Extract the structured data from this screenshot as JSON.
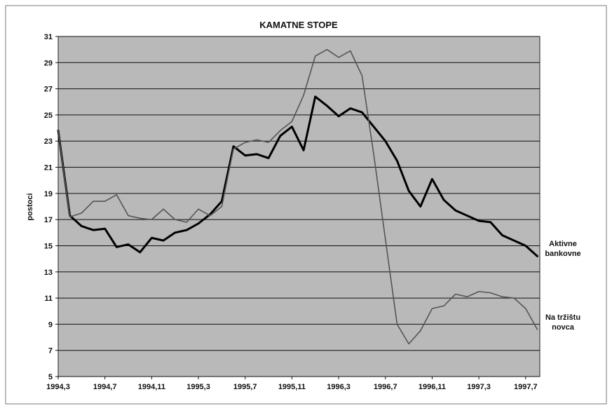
{
  "chart_data": {
    "type": "line",
    "title": "KAMATNE STOPE",
    "y_label": "postoci",
    "categories": [
      "1994,3",
      null,
      null,
      null,
      "1994,7",
      null,
      null,
      null,
      "1994,11",
      null,
      null,
      null,
      "1995,3",
      null,
      null,
      null,
      "1995,7",
      null,
      null,
      null,
      "1995,11",
      null,
      null,
      null,
      "1996,3",
      null,
      null,
      null,
      "1996,7",
      null,
      null,
      null,
      "1996,11",
      null,
      null,
      null,
      "1997,3",
      null,
      null,
      null,
      "1997,7",
      null
    ],
    "series": [
      {
        "name": "Aktivne bankovne",
        "color": "#000000",
        "width": 3,
        "values": [
          23.8,
          17.3,
          16.5,
          16.2,
          16.3,
          14.9,
          15.1,
          14.5,
          15.6,
          15.4,
          16.0,
          16.2,
          16.7,
          17.4,
          18.4,
          22.6,
          21.9,
          22.0,
          21.7,
          23.4,
          24.1,
          22.3,
          26.4,
          25.7,
          24.9,
          25.5,
          25.2,
          24.1,
          23.0,
          21.5,
          19.2,
          18.0,
          20.1,
          18.5,
          17.7,
          17.3,
          16.9,
          16.8,
          15.8,
          15.4,
          15.0,
          14.2
        ]
      },
      {
        "name": "Na tržištu novca",
        "color": "#555555",
        "width": 1.6,
        "values": [
          23.8,
          17.2,
          17.5,
          18.4,
          18.4,
          18.9,
          17.3,
          17.1,
          17.0,
          17.8,
          17.0,
          16.8,
          17.8,
          17.3,
          18.0,
          22.4,
          22.9,
          23.1,
          22.9,
          23.8,
          24.5,
          26.5,
          29.5,
          30.0,
          29.4,
          29.9,
          28.0,
          22.0,
          15.5,
          9.0,
          7.5,
          8.5,
          10.2,
          10.4,
          11.3,
          11.1,
          11.5,
          11.4,
          11.1,
          11.0,
          10.2,
          8.6
        ]
      }
    ],
    "ylim": [
      5,
      31
    ],
    "yticks": [
      5,
      7,
      9,
      11,
      13,
      15,
      17,
      19,
      21,
      23,
      25,
      27,
      29,
      31
    ],
    "grid": true
  }
}
